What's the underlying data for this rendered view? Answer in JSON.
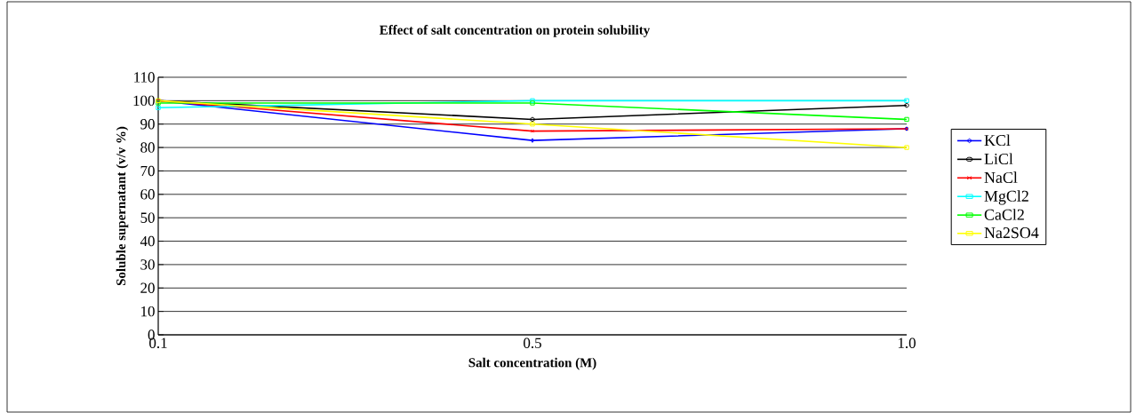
{
  "chart_data": {
    "type": "line",
    "title": "Effect of salt concentration on protein solubility",
    "xlabel": "Salt concentration (M)",
    "ylabel": "Soluble supernatant (v/v %)",
    "categories": [
      "0.1",
      "0.5",
      "1.0"
    ],
    "series": [
      {
        "name": "KCl",
        "color": "#0000ff",
        "marker": "diamond",
        "values": [
          100,
          83,
          88
        ]
      },
      {
        "name": "LiCl",
        "color": "#000000",
        "marker": "circle",
        "values": [
          100,
          92,
          98
        ]
      },
      {
        "name": "NaCl",
        "color": "#ff0000",
        "marker": "cross",
        "values": [
          100,
          87,
          88
        ]
      },
      {
        "name": "MgCl2",
        "color": "#00ffff",
        "marker": "square",
        "values": [
          97,
          100,
          100
        ]
      },
      {
        "name": "CaCl2",
        "color": "#00ff00",
        "marker": "square",
        "values": [
          99,
          99,
          92
        ]
      },
      {
        "name": "Na2SO4",
        "color": "#ffff00",
        "marker": "square",
        "values": [
          100,
          90,
          80
        ]
      }
    ],
    "ylim": [
      0,
      110
    ],
    "yticks": [
      0,
      10,
      20,
      30,
      40,
      50,
      60,
      70,
      80,
      90,
      100,
      110
    ],
    "grid": "y",
    "legend": "right"
  }
}
